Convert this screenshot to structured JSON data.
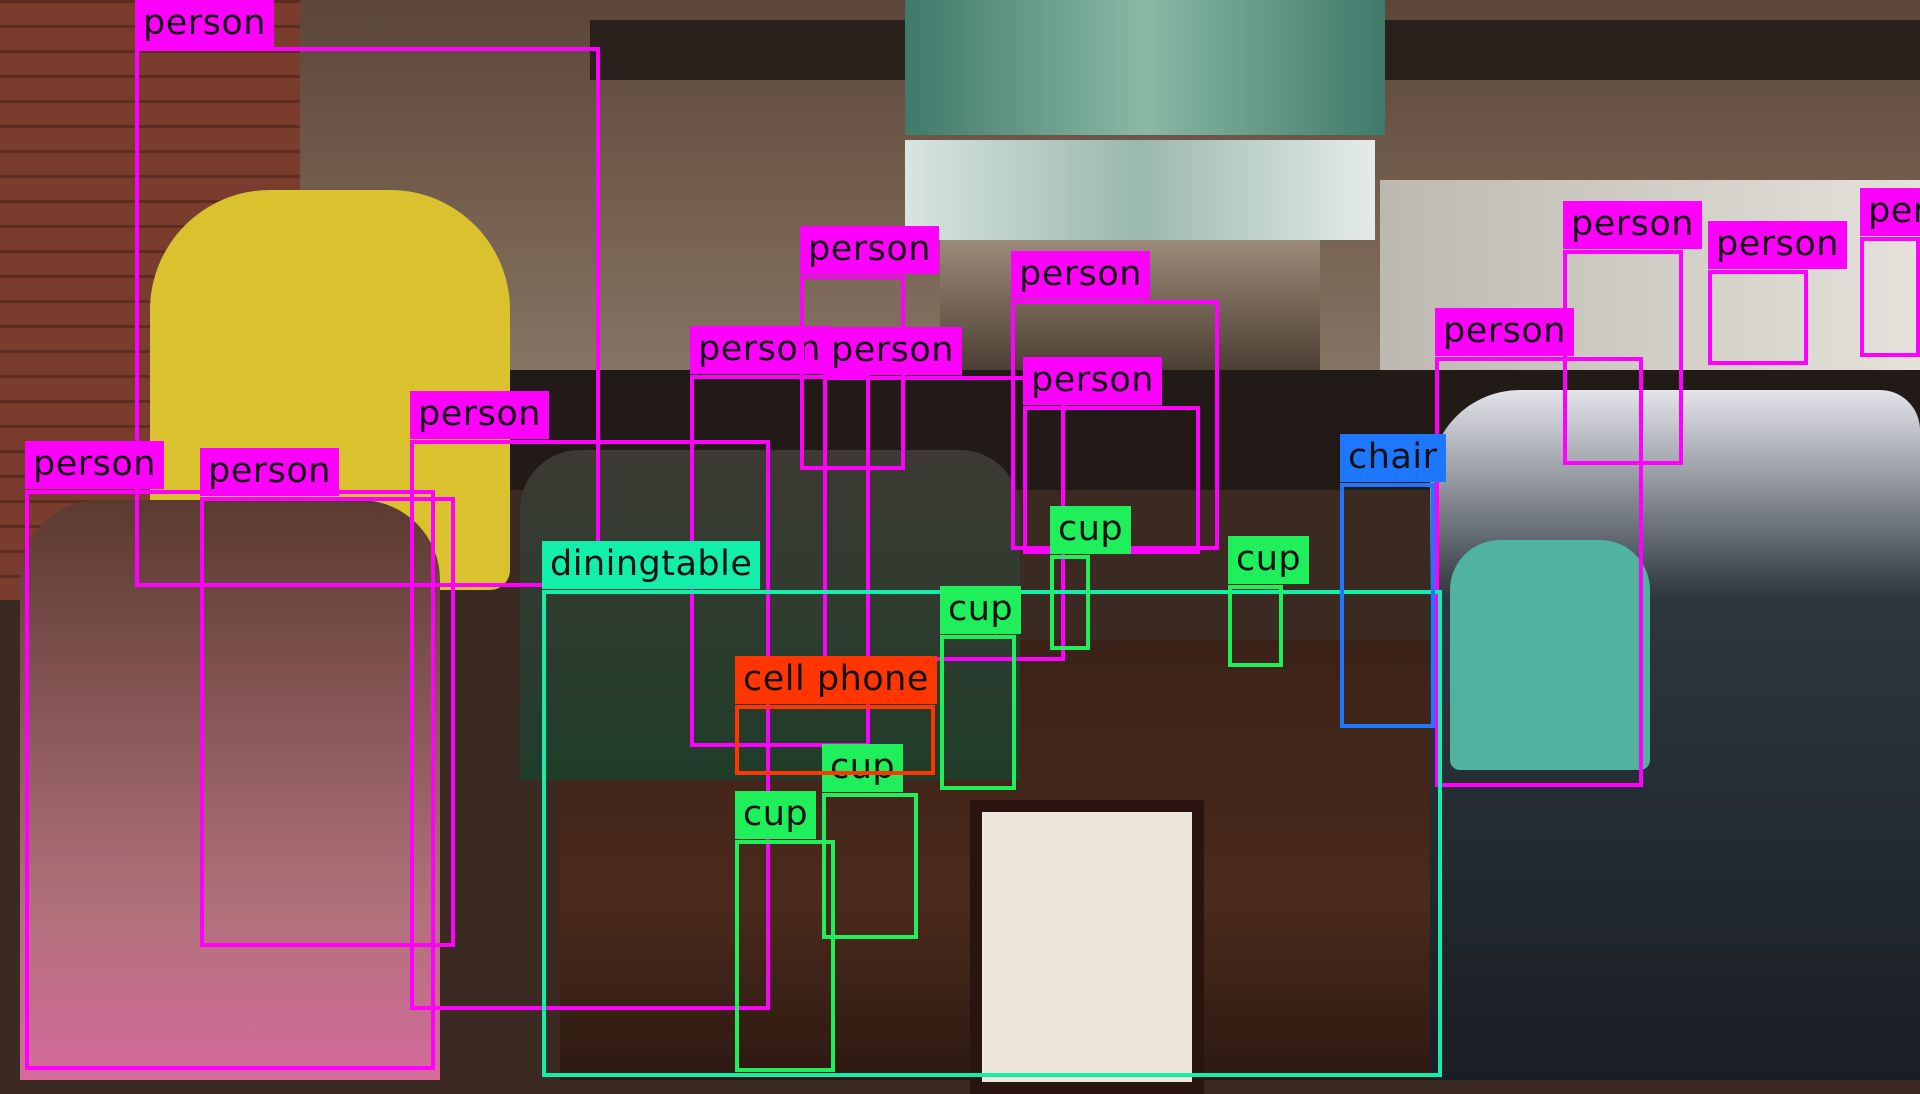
{
  "image": {
    "description": "restaurant-bar-scene-with-detection-overlays"
  },
  "colors": {
    "person": "#ff00ff",
    "diningtable": "#12efaa",
    "cup": "#1eef5a",
    "cell phone": "#ff3600",
    "chair": "#1e78ff"
  },
  "detections": [
    {
      "label": "person"
    },
    {
      "label": "person"
    },
    {
      "label": "person"
    },
    {
      "label": "person"
    },
    {
      "label": "person"
    },
    {
      "label": "person"
    },
    {
      "label": "person"
    },
    {
      "label": "person"
    },
    {
      "label": "person"
    },
    {
      "label": "person"
    },
    {
      "label": "person"
    },
    {
      "label": "person"
    },
    {
      "label": "person"
    },
    {
      "label": "diningtable"
    },
    {
      "label": "cup"
    },
    {
      "label": "cup"
    },
    {
      "label": "cup"
    },
    {
      "label": "cup"
    },
    {
      "label": "cup"
    },
    {
      "label": "cell phone"
    },
    {
      "label": "chair"
    }
  ]
}
